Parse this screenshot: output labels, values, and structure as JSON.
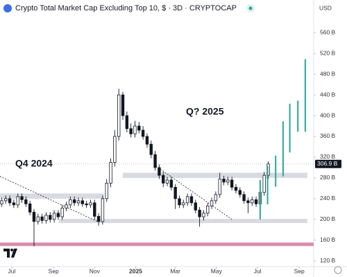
{
  "chart_data": {
    "type": "candlestick",
    "title": "Crypto Total Market Cap Excluding Top 10, $ · 3D · CRYPTOCAP",
    "currency": "USD",
    "annotations": [
      "Q4 2024",
      "Q? 2025"
    ],
    "xlim": [
      -17.5,
      448.5
    ],
    "ylim": [
      109,
      623
    ],
    "xticks": [
      {
        "value": 0,
        "label": "Jul"
      },
      {
        "value": 62,
        "label": "Sep"
      },
      {
        "value": 123,
        "label": "Nov"
      },
      {
        "value": 184,
        "label": "2025"
      },
      {
        "value": 243,
        "label": "Mar"
      },
      {
        "value": 304,
        "label": "May"
      },
      {
        "value": 365,
        "label": "Jul"
      },
      {
        "value": 427,
        "label": "Sep"
      }
    ],
    "yticks": [
      {
        "value": 560,
        "label": "560 B"
      },
      {
        "value": 520,
        "label": "520 B"
      },
      {
        "value": 480,
        "label": "480 B"
      },
      {
        "value": 440,
        "label": "440 B"
      },
      {
        "value": 400,
        "label": "400 B"
      },
      {
        "value": 360,
        "label": "360 B"
      },
      {
        "value": 320,
        "label": "320 B"
      },
      {
        "value": 280,
        "label": "280 B"
      },
      {
        "value": 240,
        "label": "240 B"
      },
      {
        "value": 200,
        "label": "200 B"
      },
      {
        "value": 160,
        "label": "160 B"
      },
      {
        "value": 120,
        "label": "120 B"
      }
    ],
    "price_label": {
      "value": 306.9,
      "label": "306.9 B"
    },
    "up_color": "#ffffff",
    "down_color": "#131722",
    "x": [
      -15,
      -9,
      -3,
      3,
      9,
      15,
      21,
      27,
      33,
      39,
      45,
      51,
      57,
      63,
      69,
      75,
      81,
      87,
      93,
      99,
      105,
      111,
      117,
      123,
      129,
      135,
      141,
      147,
      153,
      159,
      165,
      171,
      177,
      183,
      189,
      195,
      201,
      207,
      213,
      219,
      225,
      231,
      237,
      243,
      249,
      255,
      261,
      267,
      273,
      279,
      285,
      291,
      297,
      303,
      309,
      315,
      321,
      327,
      333,
      339,
      345,
      351,
      357,
      363,
      369,
      375,
      381
    ],
    "open": [
      230,
      236,
      240,
      232,
      228,
      244,
      238,
      230,
      214,
      196,
      205,
      198,
      208,
      200,
      212,
      205,
      222,
      228,
      238,
      232,
      236,
      230,
      228,
      232,
      206,
      196,
      240,
      270,
      310,
      360,
      440,
      400,
      375,
      365,
      380,
      372,
      360,
      345,
      325,
      300,
      285,
      270,
      276,
      262,
      240,
      228,
      232,
      244,
      232,
      218,
      205,
      212,
      226,
      236,
      248,
      278,
      272,
      276,
      262,
      256,
      248,
      236,
      232,
      238,
      230,
      252,
      285
    ],
    "high": [
      242,
      246,
      246,
      238,
      250,
      250,
      244,
      236,
      220,
      211,
      211,
      214,
      214,
      218,
      218,
      228,
      234,
      244,
      244,
      242,
      242,
      236,
      238,
      238,
      212,
      246,
      278,
      318,
      372,
      452,
      446,
      408,
      385,
      390,
      388,
      380,
      366,
      352,
      332,
      306,
      292,
      282,
      282,
      268,
      246,
      238,
      250,
      250,
      238,
      224,
      218,
      232,
      242,
      254,
      290,
      284,
      282,
      282,
      268,
      262,
      254,
      242,
      244,
      244,
      258,
      292,
      312
    ],
    "low": [
      224,
      230,
      226,
      222,
      222,
      232,
      224,
      208,
      148,
      190,
      192,
      192,
      194,
      194,
      199,
      199,
      216,
      222,
      226,
      226,
      224,
      222,
      222,
      200,
      188,
      190,
      234,
      262,
      302,
      352,
      392,
      368,
      358,
      358,
      366,
      354,
      338,
      318,
      294,
      278,
      262,
      264,
      256,
      220,
      222,
      222,
      226,
      226,
      212,
      186,
      198,
      206,
      220,
      230,
      242,
      266,
      266,
      256,
      250,
      242,
      230,
      212,
      226,
      224,
      224,
      246,
      278
    ],
    "close": [
      236,
      240,
      232,
      228,
      244,
      238,
      230,
      214,
      196,
      205,
      198,
      208,
      200,
      212,
      205,
      222,
      228,
      238,
      232,
      236,
      230,
      228,
      232,
      206,
      196,
      240,
      270,
      310,
      360,
      440,
      400,
      375,
      365,
      380,
      372,
      360,
      345,
      325,
      300,
      285,
      270,
      276,
      262,
      240,
      228,
      232,
      244,
      232,
      218,
      205,
      212,
      226,
      236,
      248,
      278,
      272,
      276,
      262,
      256,
      248,
      236,
      232,
      238,
      230,
      252,
      285,
      306.9
    ],
    "projection": {
      "color": "#26a69a",
      "x": [
        369,
        380,
        392,
        403,
        413,
        425,
        436
      ],
      "high": [
        276,
        303,
        323,
        389,
        423,
        429,
        509
      ],
      "low": [
        200,
        229,
        263,
        283,
        329,
        369,
        369
      ]
    },
    "zones": [
      {
        "x0": -17.5,
        "x1": 137,
        "low": 240,
        "high": 250
      },
      {
        "x0": 165,
        "x1": 439,
        "low": 280,
        "high": 290
      },
      {
        "x0": 70,
        "x1": 439,
        "low": 193,
        "high": 201
      }
    ],
    "support_line": {
      "value": 152,
      "color": "#d98cab"
    },
    "trendlines": [
      {
        "x0": -17.5,
        "y0": 283,
        "x1": 127,
        "y1": 196
      },
      {
        "x0": 214,
        "y0": 303,
        "x1": 328,
        "y1": 199
      }
    ]
  }
}
